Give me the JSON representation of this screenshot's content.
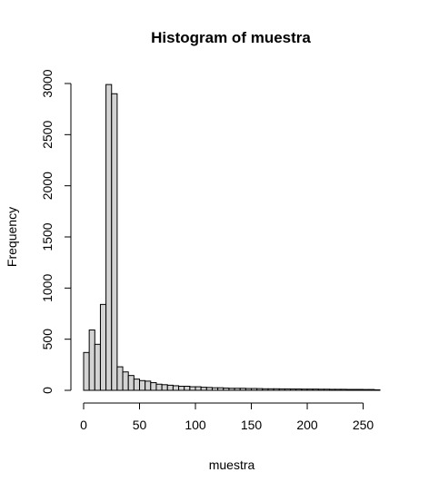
{
  "chart_data": {
    "type": "bar",
    "title": "Histogram of muestra",
    "xlabel": "muestra",
    "ylabel": "Frequency",
    "bin_width": 5,
    "bin_start": 0,
    "xlim": [
      0,
      265
    ],
    "ylim": [
      0,
      3000
    ],
    "xticks": [
      0,
      50,
      100,
      150,
      200,
      250
    ],
    "yticks": [
      0,
      500,
      1000,
      1500,
      2000,
      2500,
      3000
    ],
    "values": [
      370,
      590,
      450,
      840,
      2990,
      2900,
      230,
      180,
      145,
      110,
      95,
      90,
      75,
      60,
      55,
      50,
      45,
      40,
      40,
      35,
      35,
      30,
      28,
      25,
      25,
      22,
      20,
      20,
      20,
      18,
      18,
      17,
      15,
      15,
      15,
      14,
      14,
      13,
      13,
      12,
      12,
      12,
      11,
      11,
      10,
      10,
      10,
      9,
      9,
      9,
      8,
      8,
      5
    ],
    "bar_fill": "#d3d3d3",
    "grid": false
  }
}
